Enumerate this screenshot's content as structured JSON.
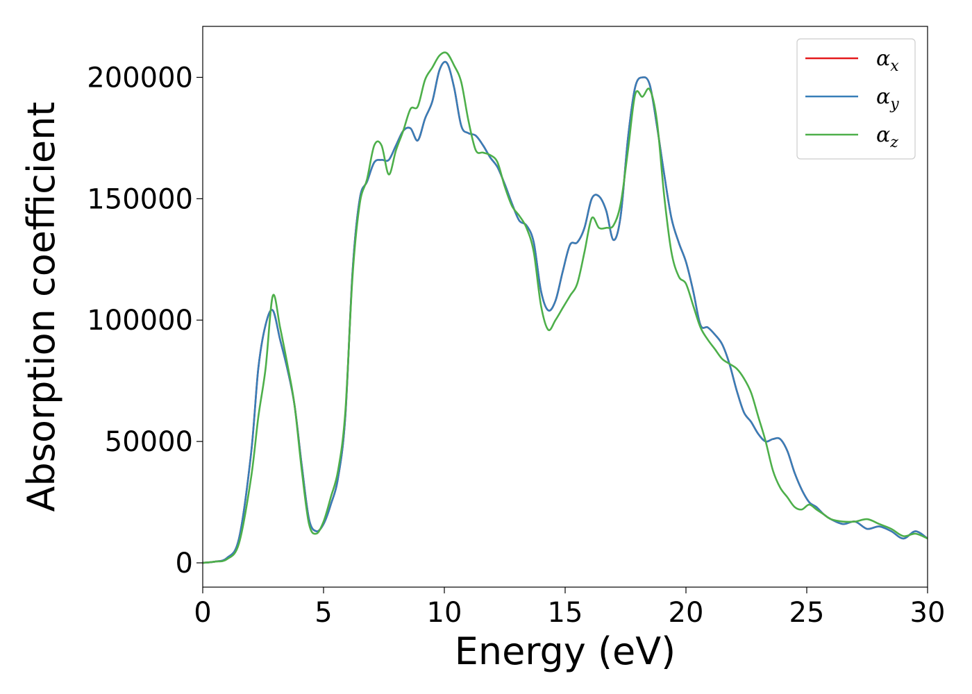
{
  "chart_data": {
    "type": "line",
    "xlabel": "Energy (eV)",
    "ylabel": "Absorption coefficient",
    "xlim": [
      0,
      30
    ],
    "ylim": [
      -10000,
      221000
    ],
    "xticks": [
      "0",
      "5",
      "10",
      "15",
      "20",
      "25",
      "30"
    ],
    "yticks": [
      "0",
      "50000",
      "100000",
      "150000",
      "200000"
    ],
    "grid": false,
    "legend_position": "top-right",
    "x": [
      0,
      0.5,
      1,
      1.5,
      2,
      2.3,
      2.6,
      2.9,
      3.2,
      3.5,
      3.8,
      4.1,
      4.4,
      4.7,
      5,
      5.3,
      5.6,
      5.9,
      6.2,
      6.5,
      6.8,
      7.1,
      7.4,
      7.7,
      8,
      8.3,
      8.6,
      8.9,
      9.2,
      9.5,
      9.8,
      10.1,
      10.4,
      10.7,
      11,
      11.3,
      11.6,
      11.9,
      12.2,
      12.5,
      12.8,
      13.1,
      13.4,
      13.7,
      14,
      14.3,
      14.6,
      14.9,
      15.2,
      15.5,
      15.8,
      16.1,
      16.4,
      16.7,
      17,
      17.3,
      17.6,
      17.9,
      18.2,
      18.5,
      18.8,
      19.1,
      19.4,
      19.7,
      20,
      20.3,
      20.6,
      20.9,
      21.2,
      21.5,
      21.8,
      22.1,
      22.4,
      22.7,
      23,
      23.3,
      23.6,
      23.9,
      24.2,
      24.5,
      24.8,
      25.1,
      25.4,
      25.7,
      26,
      26.5,
      27,
      27.5,
      28,
      28.5,
      29,
      29.5,
      30
    ],
    "series": [
      {
        "name": "α_x",
        "color": "#e41a1c",
        "values": [
          0,
          500,
          2000,
          10000,
          45000,
          80000,
          98000,
          104000,
          92000,
          80000,
          65000,
          40000,
          18000,
          13000,
          16000,
          24000,
          35000,
          60000,
          120000,
          150000,
          157000,
          165000,
          166000,
          166000,
          172000,
          178000,
          179000,
          174000,
          183000,
          190000,
          203000,
          206000,
          196000,
          180000,
          177000,
          176000,
          172000,
          167000,
          163000,
          156000,
          148000,
          141000,
          139000,
          132000,
          112000,
          104000,
          108000,
          120000,
          131000,
          132000,
          138000,
          150000,
          151000,
          145000,
          133000,
          143000,
          175000,
          196000,
          200000,
          197000,
          180000,
          160000,
          142000,
          132000,
          124000,
          112000,
          98000,
          97000,
          94000,
          90000,
          82000,
          71000,
          62000,
          58000,
          53000,
          50000,
          51000,
          51000,
          46000,
          37000,
          30000,
          25000,
          23000,
          20000,
          18000,
          16000,
          17000,
          14000,
          15000,
          13000,
          10000,
          13000,
          10000
        ]
      },
      {
        "name": "α_y",
        "color": "#377eb8",
        "values": [
          0,
          500,
          2000,
          10000,
          45000,
          80000,
          98000,
          104000,
          92000,
          80000,
          65000,
          40000,
          18000,
          13000,
          16000,
          24000,
          35000,
          60000,
          120000,
          150000,
          157000,
          165000,
          166000,
          166000,
          172000,
          178000,
          179000,
          174000,
          183000,
          190000,
          203000,
          206000,
          196000,
          180000,
          177000,
          176000,
          172000,
          167000,
          163000,
          156000,
          148000,
          141000,
          139000,
          132000,
          112000,
          104000,
          108000,
          120000,
          131000,
          132000,
          138000,
          150000,
          151000,
          145000,
          133000,
          143000,
          175000,
          196000,
          200000,
          197000,
          180000,
          160000,
          142000,
          132000,
          124000,
          112000,
          98000,
          97000,
          94000,
          90000,
          82000,
          71000,
          62000,
          58000,
          53000,
          50000,
          51000,
          51000,
          46000,
          37000,
          30000,
          25000,
          23000,
          20000,
          18000,
          16000,
          17000,
          14000,
          15000,
          13000,
          10000,
          13000,
          10000
        ]
      },
      {
        "name": "α_z",
        "color": "#4daf4a",
        "values": [
          0,
          500,
          1500,
          8000,
          35000,
          60000,
          80000,
          110000,
          97000,
          82000,
          65000,
          38000,
          16000,
          12000,
          17000,
          27000,
          38000,
          62000,
          118000,
          148000,
          158000,
          172000,
          172000,
          160000,
          170000,
          178000,
          187000,
          188000,
          199000,
          204000,
          209000,
          210000,
          205000,
          198000,
          182000,
          170000,
          169000,
          168000,
          165000,
          155000,
          147000,
          143000,
          138000,
          128000,
          106000,
          96000,
          100000,
          105000,
          110000,
          115000,
          128000,
          142000,
          138000,
          138000,
          139000,
          148000,
          170000,
          193000,
          192000,
          195000,
          182000,
          151000,
          128000,
          118000,
          115000,
          106000,
          97000,
          92000,
          88000,
          84000,
          82000,
          80000,
          76000,
          70000,
          60000,
          50000,
          38000,
          31000,
          27000,
          23000,
          22000,
          24000,
          22000,
          20000,
          18000,
          17000,
          17000,
          18000,
          16000,
          14000,
          11000,
          12000,
          10000
        ]
      }
    ]
  }
}
